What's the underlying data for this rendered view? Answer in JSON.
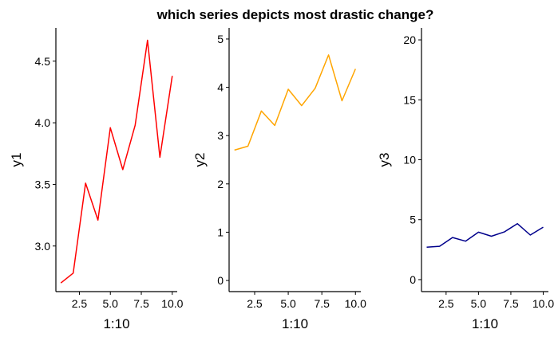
{
  "title": "which series depicts most drastic change?",
  "colors": {
    "y1": "#ff0000",
    "y2": "#ffa500",
    "y3": "#00008b"
  },
  "chart_data": [
    {
      "type": "line",
      "id": "y1",
      "xlabel": "1:10",
      "ylabel": "y1",
      "xlim": [
        0.6,
        10.4
      ],
      "ylim": [
        2.63,
        4.77
      ],
      "xticks": [
        2.5,
        5.0,
        7.5,
        10.0
      ],
      "xtick_labels": [
        "2.5",
        "5.0",
        "7.5",
        "10.0"
      ],
      "yticks": [
        3.0,
        3.5,
        4.0,
        4.5
      ],
      "ytick_labels": [
        "3.0",
        "3.5",
        "4.0",
        "4.5"
      ],
      "grid": false,
      "series": [
        {
          "color": "#ff0000",
          "x": [
            1,
            2,
            3,
            4,
            5,
            6,
            7,
            8,
            9,
            10
          ],
          "values": [
            2.7,
            2.78,
            3.51,
            3.21,
            3.96,
            3.62,
            3.98,
            4.67,
            3.72,
            4.38
          ]
        }
      ]
    },
    {
      "type": "line",
      "id": "y2",
      "xlabel": "1:10",
      "ylabel": "y2",
      "xlim": [
        0.6,
        10.4
      ],
      "ylim": [
        -0.23,
        5.23
      ],
      "xticks": [
        2.5,
        5.0,
        7.5,
        10.0
      ],
      "xtick_labels": [
        "2.5",
        "5.0",
        "7.5",
        "10.0"
      ],
      "yticks": [
        0,
        1,
        2,
        3,
        4,
        5
      ],
      "ytick_labels": [
        "0",
        "1",
        "2",
        "3",
        "4",
        "5"
      ],
      "grid": false,
      "series": [
        {
          "color": "#ffa500",
          "x": [
            1,
            2,
            3,
            4,
            5,
            6,
            7,
            8,
            9,
            10
          ],
          "values": [
            2.7,
            2.78,
            3.51,
            3.21,
            3.96,
            3.62,
            3.98,
            4.67,
            3.72,
            4.38
          ]
        }
      ]
    },
    {
      "type": "line",
      "id": "y3",
      "xlabel": "1:10",
      "ylabel": "y3",
      "xlim": [
        0.6,
        10.4
      ],
      "ylim": [
        -1.0,
        21.0
      ],
      "xticks": [
        2.5,
        5.0,
        7.5,
        10.0
      ],
      "xtick_labels": [
        "2.5",
        "5.0",
        "7.5",
        "10.0"
      ],
      "yticks": [
        0,
        5,
        10,
        15,
        20
      ],
      "ytick_labels": [
        "0",
        "5",
        "10",
        "15",
        "20"
      ],
      "grid": false,
      "series": [
        {
          "color": "#00008b",
          "x": [
            1,
            2,
            3,
            4,
            5,
            6,
            7,
            8,
            9,
            10
          ],
          "values": [
            2.7,
            2.78,
            3.51,
            3.21,
            3.96,
            3.62,
            3.98,
            4.67,
            3.72,
            4.38
          ]
        }
      ]
    }
  ]
}
